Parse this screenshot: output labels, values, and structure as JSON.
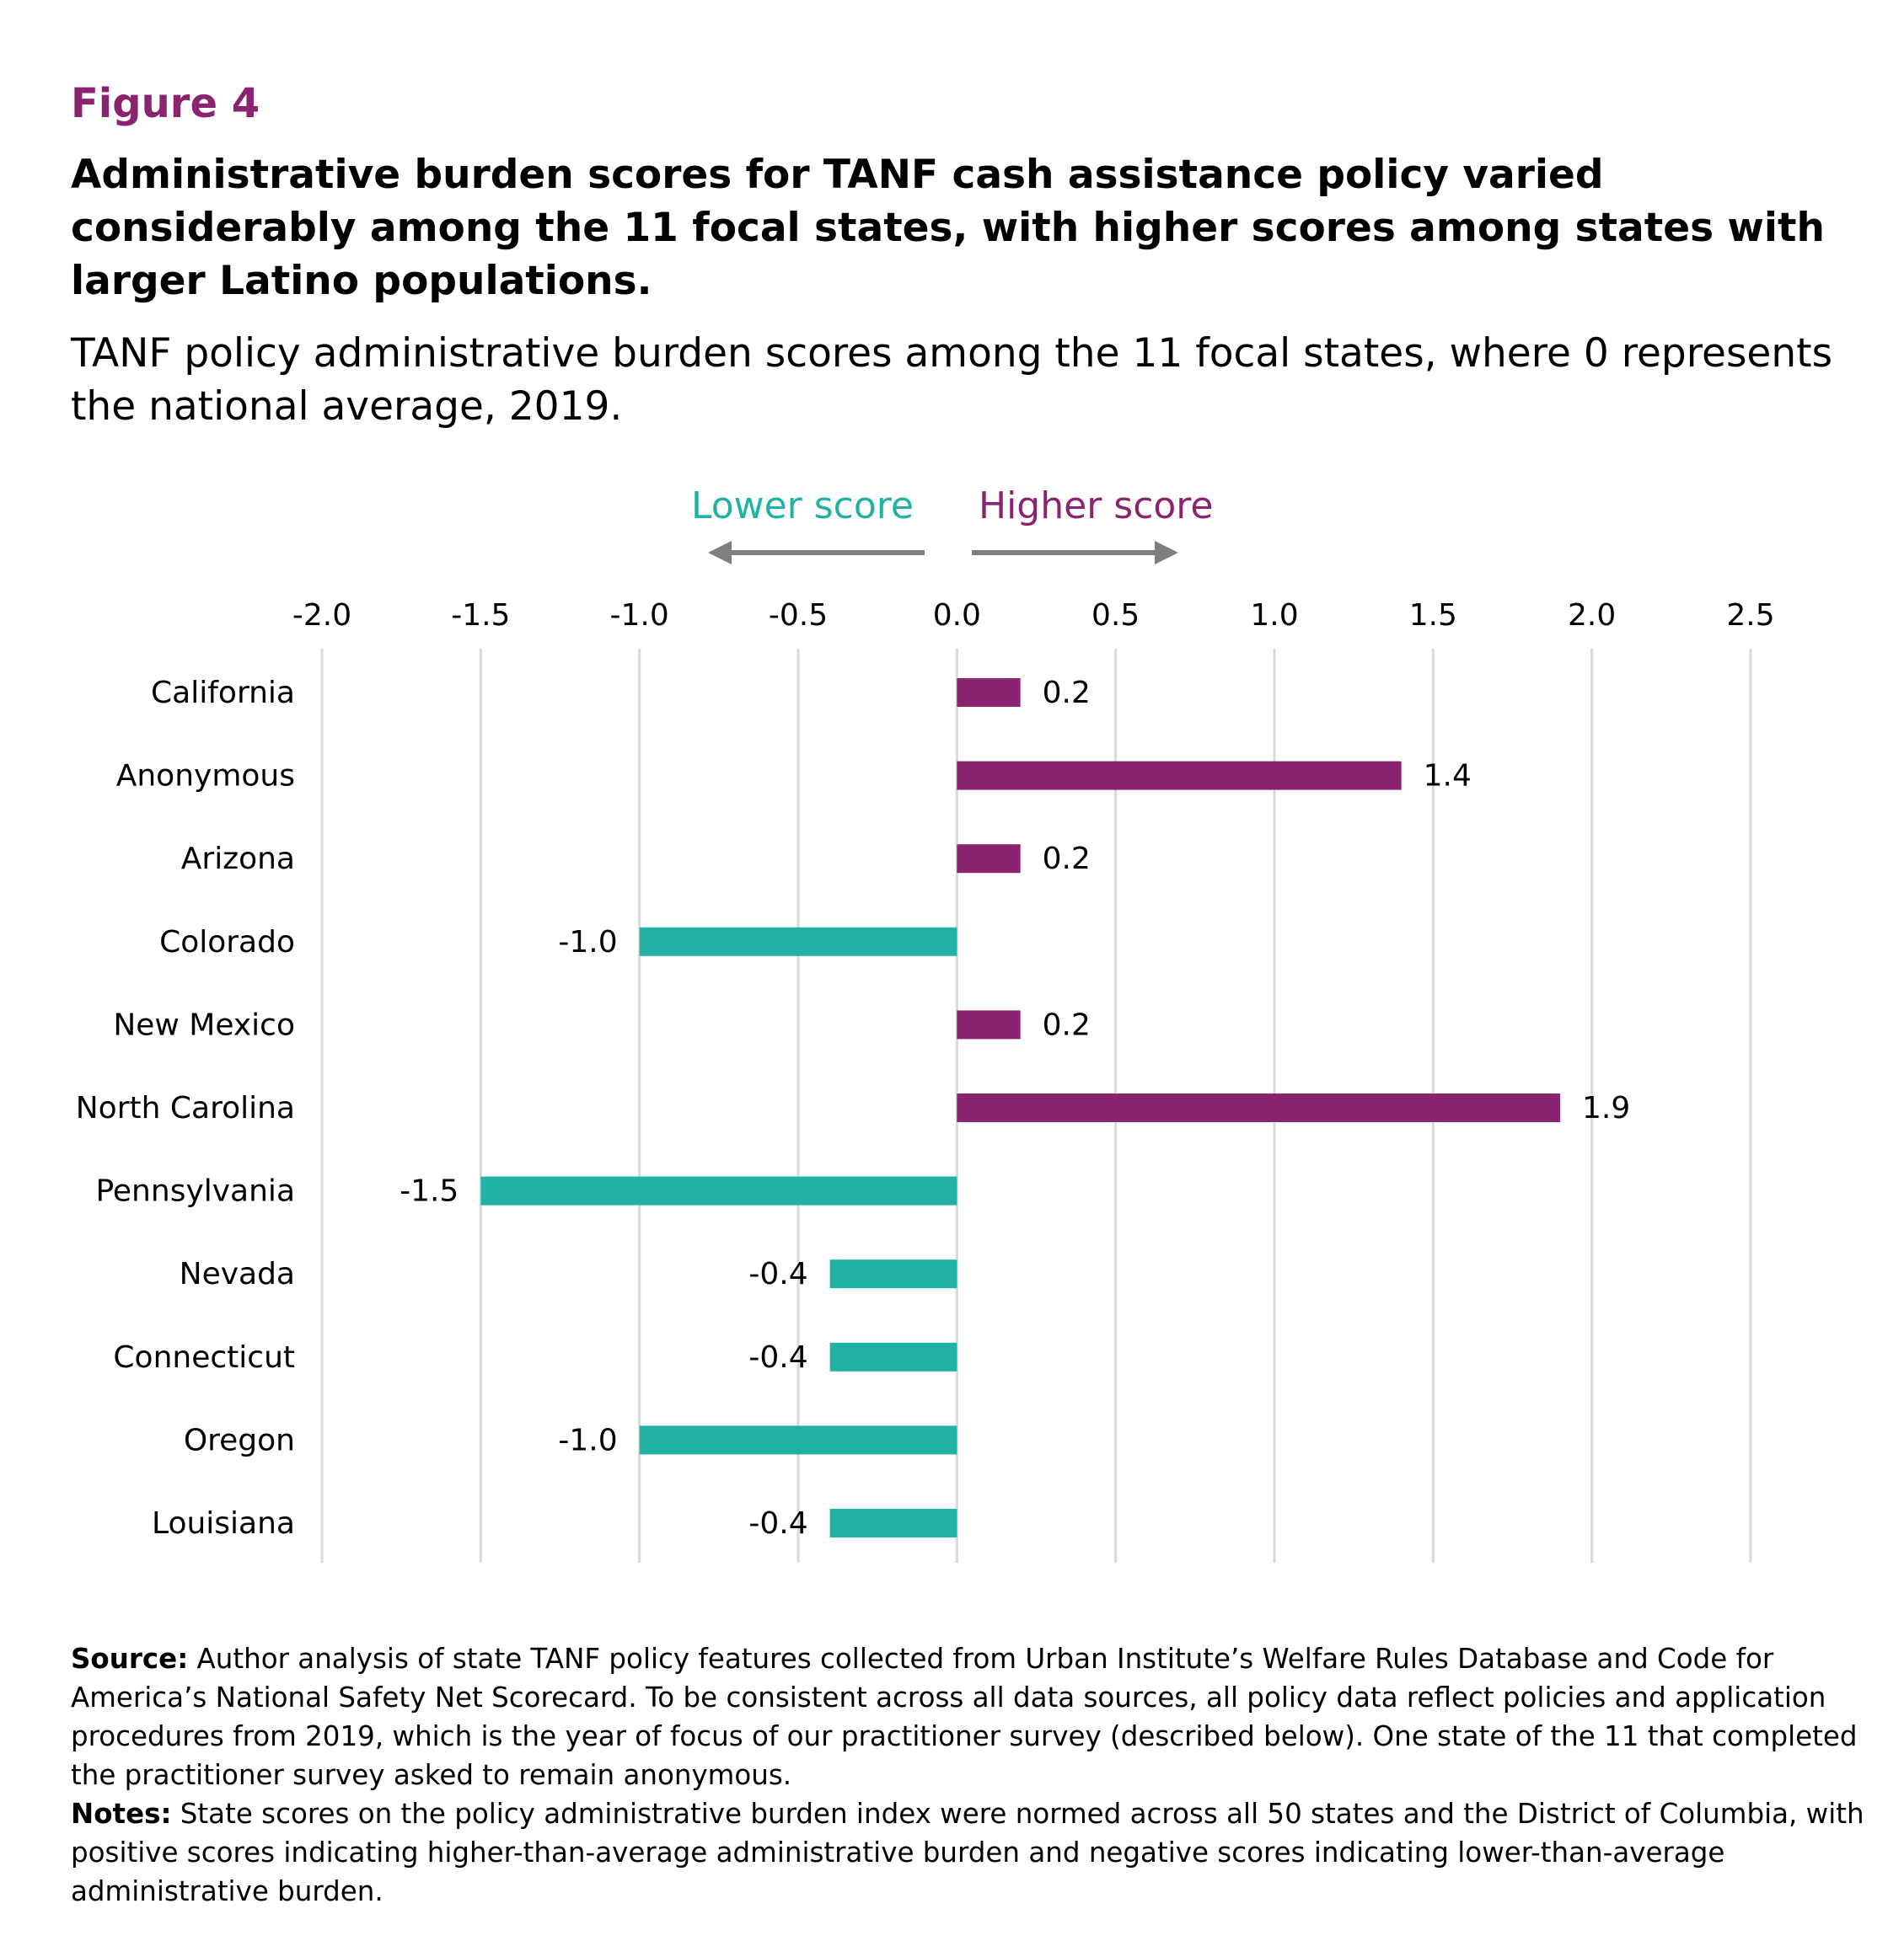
{
  "header": {
    "figure_label": "Figure 4",
    "headline": "Administrative burden scores for TANF cash assistance policy varied considerably among the 11 focal states, with higher scores among states with larger Latino populations.",
    "subtitle": "TANF policy administrative burden scores among the 11 focal states, where 0 represents the national average, 2019."
  },
  "direction_labels": {
    "lower": "Lower score",
    "higher": "Higher score"
  },
  "colors": {
    "positive": "#8a2471",
    "negative": "#20b2a4",
    "arrow": "#7f7f7f",
    "grid": "#d9d9d9"
  },
  "chart_data": {
    "type": "bar",
    "orientation": "horizontal",
    "categories": [
      "California",
      "Anonymous",
      "Arizona",
      "Colorado",
      "New Mexico",
      "North Carolina",
      "Pennsylvania",
      "Nevada",
      "Connecticut",
      "Oregon",
      "Louisiana"
    ],
    "values": [
      0.2,
      1.4,
      0.2,
      -1.0,
      0.2,
      1.9,
      -1.5,
      -0.4,
      -0.4,
      -1.0,
      -0.4
    ],
    "value_labels": [
      "0.2",
      "1.4",
      "0.2",
      "-1.0",
      "0.2",
      "1.9",
      "-1.5",
      "-0.4",
      "-0.4",
      "-1.0",
      "-0.4"
    ],
    "xlim": [
      -2.0,
      2.5
    ],
    "x_ticks": [
      "-2.0",
      "-1.5",
      "-1.0",
      "-0.5",
      "0.0",
      "0.5",
      "1.0",
      "1.5",
      "2.0",
      "2.5"
    ],
    "grid": "vertical",
    "tick_position": "top"
  },
  "footer": {
    "source_label": "Source:",
    "source_text": " Author analysis of state TANF policy features collected from Urban Institute’s Welfare Rules Database and Code for America’s National Safety Net Scorecard. To be consistent across all data sources, all policy data reflect policies and application procedures from 2019, which is the year of focus of our practitioner survey (described below). One state of the 11 that completed the practitioner survey asked to remain anonymous.",
    "notes_label": "Notes:",
    "notes_text": " State scores on the policy administrative burden index were normed across all 50 states and the District of Columbia, with positive scores indicating higher-than-average administrative burden and negative scores indicating lower-than-average administrative burden."
  }
}
